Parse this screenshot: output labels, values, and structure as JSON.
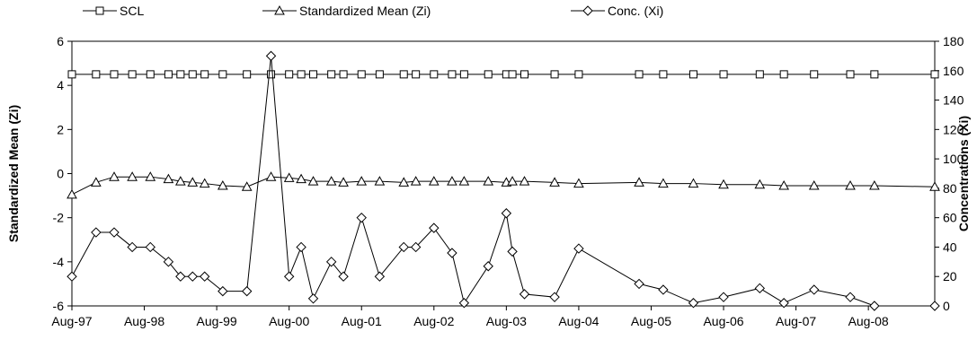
{
  "chart_data": {
    "type": "line",
    "title": "",
    "xlabel": "",
    "ylabel_left": "Standardized Mean (Zi)",
    "ylabel_right": "Concentrations (Xi)",
    "ylim_left": [
      -6,
      6
    ],
    "ylim_right": [
      0,
      180
    ],
    "yticks_left": [
      "6",
      "4",
      "2",
      "0",
      "-2",
      "-4",
      "-6"
    ],
    "yticks_right": [
      "180",
      "160",
      "140",
      "120",
      "100",
      "80",
      "60",
      "40",
      "20",
      "0"
    ],
    "x_range": [
      "1997-08",
      "2009-07"
    ],
    "xticks": [
      {
        "date": "1997-08",
        "label": "Aug-97"
      },
      {
        "date": "1998-08",
        "label": "Aug-98"
      },
      {
        "date": "1999-08",
        "label": "Aug-99"
      },
      {
        "date": "2000-08",
        "label": "Aug-00"
      },
      {
        "date": "2001-08",
        "label": "Aug-01"
      },
      {
        "date": "2002-08",
        "label": "Aug-02"
      },
      {
        "date": "2003-08",
        "label": "Aug-03"
      },
      {
        "date": "2004-08",
        "label": "Aug-04"
      },
      {
        "date": "2005-08",
        "label": "Aug-05"
      },
      {
        "date": "2006-08",
        "label": "Aug-06"
      },
      {
        "date": "2007-08",
        "label": "Aug-07"
      },
      {
        "date": "2008-08",
        "label": "Aug-08"
      }
    ],
    "grid": false,
    "legend_position": "top",
    "x": [
      "1997-08",
      "1997-12",
      "1998-03",
      "1998-06",
      "1998-09",
      "1998-12",
      "1999-02",
      "1999-04",
      "1999-06",
      "1999-09",
      "2000-01",
      "2000-05",
      "2000-08",
      "2000-10",
      "2000-12",
      "2001-03",
      "2001-05",
      "2001-08",
      "2001-11",
      "2002-03",
      "2002-05",
      "2002-08",
      "2002-11",
      "2003-01",
      "2003-05",
      "2003-08",
      "2003-09",
      "2003-11",
      "2004-04",
      "2004-08",
      "2005-06",
      "2005-10",
      "2006-03",
      "2006-08",
      "2007-02",
      "2007-06",
      "2007-11",
      "2008-05",
      "2008-09",
      "2009-07"
    ],
    "series": [
      {
        "name": "SCL",
        "axis": "left",
        "marker": "square",
        "values": [
          4.5,
          4.5,
          4.5,
          4.5,
          4.5,
          4.5,
          4.5,
          4.5,
          4.5,
          4.5,
          4.5,
          4.5,
          4.5,
          4.5,
          4.5,
          4.5,
          4.5,
          4.5,
          4.5,
          4.5,
          4.5,
          4.5,
          4.5,
          4.5,
          4.5,
          4.5,
          4.5,
          4.5,
          4.5,
          4.5,
          4.5,
          4.5,
          4.5,
          4.5,
          4.5,
          4.5,
          4.5,
          4.5,
          4.5,
          4.5
        ]
      },
      {
        "name": "Standardized Mean (Zi)",
        "axis": "left",
        "marker": "triangle",
        "values": [
          -0.95,
          -0.4,
          -0.15,
          -0.15,
          -0.15,
          -0.25,
          -0.35,
          -0.4,
          -0.45,
          -0.55,
          -0.6,
          -0.15,
          -0.2,
          -0.25,
          -0.35,
          -0.35,
          -0.4,
          -0.35,
          -0.35,
          -0.4,
          -0.35,
          -0.35,
          -0.35,
          -0.35,
          -0.35,
          -0.4,
          -0.35,
          -0.35,
          -0.4,
          -0.45,
          -0.4,
          -0.45,
          -0.45,
          -0.5,
          -0.5,
          -0.55,
          -0.55,
          -0.55,
          -0.55,
          -0.6
        ]
      },
      {
        "name": "Conc. (Xi)",
        "axis": "right",
        "marker": "diamond",
        "values": [
          20,
          50,
          50,
          40,
          40,
          30,
          20,
          20,
          20,
          10,
          10,
          170,
          20,
          40,
          5,
          30,
          20,
          60,
          20,
          40,
          40,
          53,
          36,
          2,
          27,
          63,
          37,
          8,
          6,
          39,
          15,
          11,
          2,
          6,
          12,
          2,
          11,
          6,
          0,
          0
        ]
      }
    ]
  }
}
